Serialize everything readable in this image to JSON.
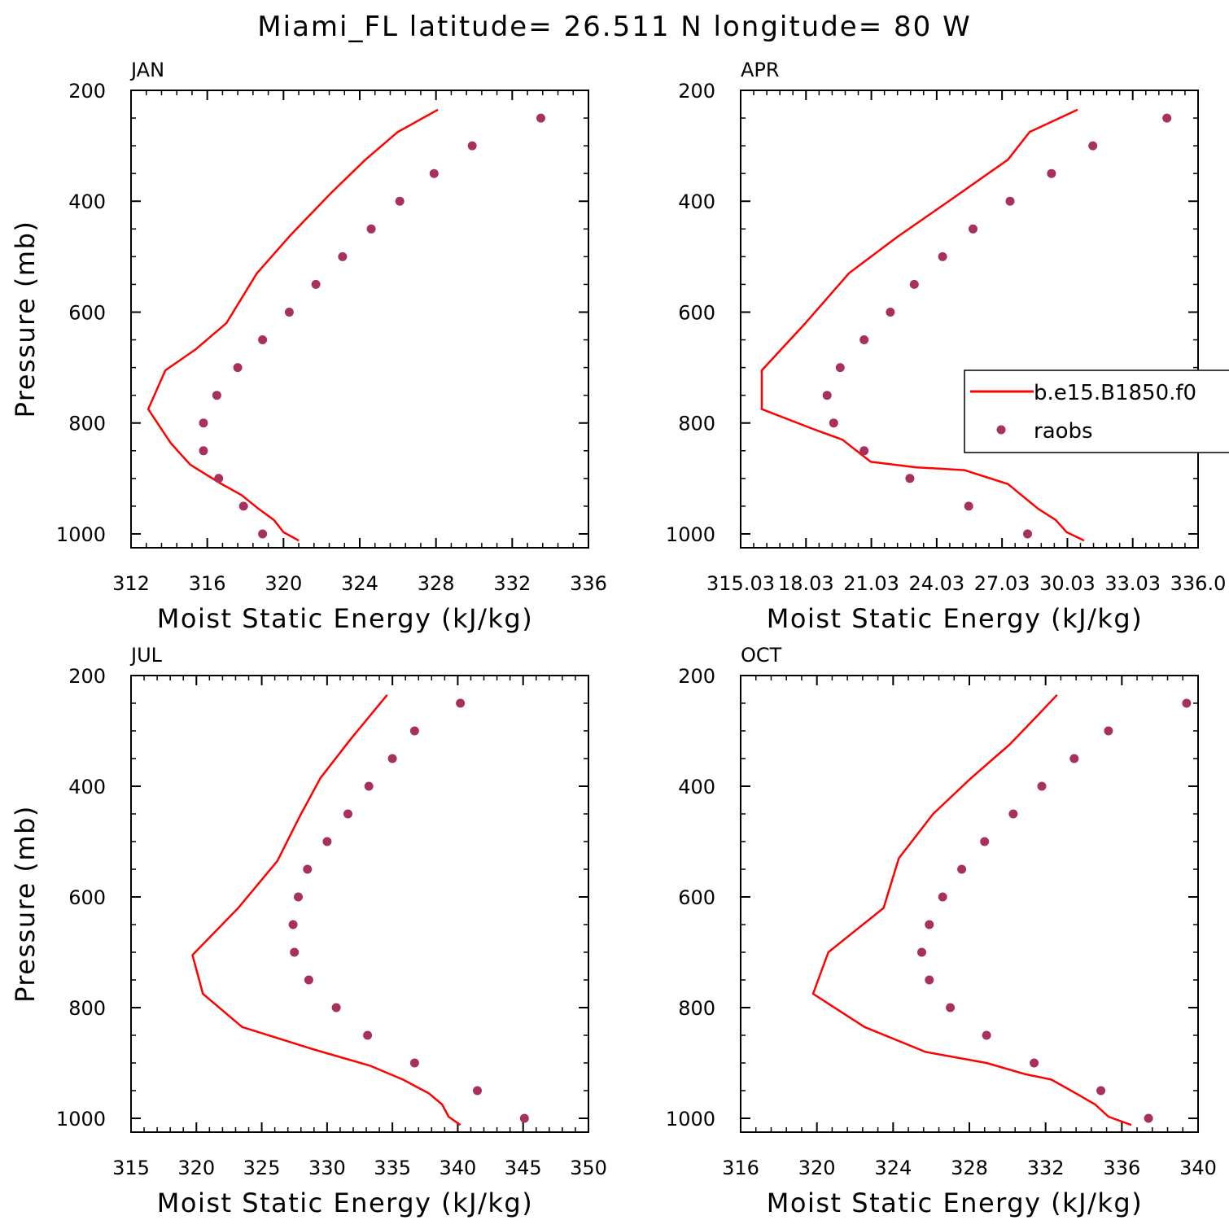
{
  "title": "Miami_FL  latitude= 26.511 N longitude= 80 W",
  "legend": {
    "model_label": "b.e15.B1850.f0",
    "obs_label": "raobs"
  },
  "colors": {
    "model_line": "#ff0000",
    "obs_marker": "#a8305e",
    "axes": "#000000"
  },
  "chart_data": [
    {
      "type": "line",
      "panel": "JAN",
      "title": "JAN",
      "xlabel": "Moist Static Energy (kJ/kg)",
      "ylabel": "Pressure (mb)",
      "xlim": [
        312,
        336
      ],
      "ylim": [
        1025,
        200
      ],
      "y_inverted": true,
      "grid": false,
      "xticks": [
        312,
        316,
        320,
        324,
        328,
        332,
        336
      ],
      "xtick_labels": [
        "312",
        "316",
        "320",
        "324",
        "328",
        "332",
        "336"
      ],
      "yticks": [
        200,
        400,
        600,
        800,
        1000
      ],
      "ytick_labels": [
        "200",
        "400",
        "600",
        "800",
        "1000"
      ],
      "series": [
        {
          "name": "b.e15.B1850.f0",
          "style": "line",
          "x": [
            320.8,
            320.0,
            319.5,
            318.7,
            317.8,
            316.6,
            315.1,
            314.1,
            312.9,
            313.8,
            315.4,
            317.0,
            318.6,
            320.4,
            322.5,
            324.3,
            326.0,
            328.1
          ],
          "y": [
            1012,
            997,
            975,
            955,
            930,
            907,
            875,
            837,
            775,
            705,
            667,
            620,
            530,
            460,
            385,
            325,
            275,
            235
          ]
        },
        {
          "name": "raobs",
          "style": "markers",
          "x": [
            318.9,
            317.9,
            316.6,
            315.8,
            315.8,
            316.5,
            317.6,
            318.9,
            320.3,
            321.7,
            323.1,
            324.6,
            326.1,
            327.9,
            329.9,
            333.5
          ],
          "y": [
            1000,
            950,
            900,
            850,
            800,
            750,
            700,
            650,
            600,
            550,
            500,
            450,
            400,
            350,
            300,
            250
          ]
        }
      ]
    },
    {
      "type": "line",
      "panel": "APR",
      "title": "APR",
      "xlabel": "Moist Static Energy (kJ/kg)",
      "ylabel": "",
      "xlim": [
        315.03,
        336.03
      ],
      "ylim": [
        1025,
        200
      ],
      "y_inverted": true,
      "grid": false,
      "xticks": [
        315.03,
        318.03,
        321.03,
        324.03,
        327.03,
        330.03,
        333.03,
        336.03
      ],
      "xtick_labels": [
        "315.03",
        "18.03",
        "21.03",
        "24.03",
        "27.03",
        "30.03",
        "33.03",
        "336.0"
      ],
      "yticks": [
        200,
        400,
        600,
        800,
        1000
      ],
      "ytick_labels": [
        "200",
        "400",
        "600",
        "800",
        "1000"
      ],
      "legend_position": "right",
      "series": [
        {
          "name": "b.e15.B1850.f0",
          "style": "line",
          "x": [
            330.8,
            330.0,
            329.5,
            328.7,
            327.3,
            325.3,
            323.1,
            321.0,
            319.7,
            318.3,
            316.0,
            316.0,
            318.0,
            320.0,
            322.2,
            324.4,
            327.3,
            328.3,
            330.5
          ],
          "y": [
            1012,
            997,
            975,
            955,
            910,
            885,
            880,
            870,
            830,
            810,
            775,
            705,
            620,
            530,
            465,
            405,
            325,
            275,
            235
          ]
        },
        {
          "name": "raobs",
          "style": "markers",
          "x": [
            328.2,
            325.5,
            322.8,
            320.7,
            319.3,
            319.0,
            319.6,
            320.7,
            321.9,
            323.0,
            324.3,
            325.7,
            327.4,
            329.3,
            331.2,
            334.6
          ],
          "y": [
            1000,
            950,
            900,
            850,
            800,
            750,
            700,
            650,
            600,
            550,
            500,
            450,
            400,
            350,
            300,
            250
          ]
        }
      ]
    },
    {
      "type": "line",
      "panel": "JUL",
      "title": "JUL",
      "xlabel": "Moist Static Energy (kJ/kg)",
      "ylabel": "Pressure (mb)",
      "xlim": [
        315,
        350
      ],
      "ylim": [
        1025,
        200
      ],
      "y_inverted": true,
      "grid": false,
      "xticks": [
        315,
        320,
        325,
        330,
        335,
        340,
        345,
        350
      ],
      "xtick_labels": [
        "315",
        "320",
        "325",
        "330",
        "335",
        "340",
        "345",
        "350"
      ],
      "yticks": [
        200,
        400,
        600,
        800,
        1000
      ],
      "ytick_labels": [
        "200",
        "400",
        "600",
        "800",
        "1000"
      ],
      "series": [
        {
          "name": "b.e15.B1850.f0",
          "style": "line",
          "x": [
            340.2,
            339.3,
            338.8,
            337.8,
            335.8,
            333.3,
            328.9,
            323.5,
            320.5,
            319.7,
            323.2,
            326.2,
            327.9,
            329.5,
            331.8,
            334.6
          ],
          "y": [
            1012,
            997,
            975,
            955,
            930,
            905,
            875,
            835,
            775,
            705,
            620,
            535,
            455,
            385,
            315,
            235
          ]
        },
        {
          "name": "raobs",
          "style": "markers",
          "x": [
            345.1,
            341.5,
            336.7,
            333.1,
            330.7,
            328.6,
            327.5,
            327.4,
            327.8,
            328.5,
            330.0,
            331.6,
            333.2,
            335.0,
            336.7,
            340.2
          ],
          "y": [
            1000,
            950,
            900,
            850,
            800,
            750,
            700,
            650,
            600,
            550,
            500,
            450,
            400,
            350,
            300,
            250
          ]
        }
      ]
    },
    {
      "type": "line",
      "panel": "OCT",
      "title": "OCT",
      "xlabel": "Moist Static Energy (kJ/kg)",
      "ylabel": "",
      "xlim": [
        316,
        340
      ],
      "ylim": [
        1025,
        200
      ],
      "y_inverted": true,
      "grid": false,
      "xticks": [
        316,
        320,
        324,
        328,
        332,
        336,
        340
      ],
      "xtick_labels": [
        "316",
        "320",
        "324",
        "328",
        "332",
        "336",
        "340"
      ],
      "yticks": [
        200,
        400,
        600,
        800,
        1000
      ],
      "ytick_labels": [
        "200",
        "400",
        "600",
        "800",
        "1000"
      ],
      "series": [
        {
          "name": "b.e15.B1850.f0",
          "style": "line",
          "x": [
            336.5,
            335.3,
            334.6,
            333.6,
            332.3,
            330.9,
            328.9,
            325.7,
            322.5,
            319.8,
            320.6,
            323.5,
            324.3,
            326.1,
            328.1,
            330.1,
            331.5,
            332.6
          ],
          "y": [
            1012,
            997,
            975,
            955,
            930,
            920,
            900,
            880,
            835,
            775,
            700,
            620,
            530,
            450,
            385,
            325,
            275,
            235
          ]
        },
        {
          "name": "raobs",
          "style": "markers",
          "x": [
            337.4,
            334.9,
            331.4,
            328.9,
            327.0,
            325.9,
            325.5,
            325.9,
            326.6,
            327.6,
            328.8,
            330.3,
            331.8,
            333.5,
            335.3,
            339.4
          ],
          "y": [
            1000,
            950,
            900,
            850,
            800,
            750,
            700,
            650,
            600,
            550,
            500,
            450,
            400,
            350,
            300,
            250
          ]
        }
      ]
    }
  ]
}
